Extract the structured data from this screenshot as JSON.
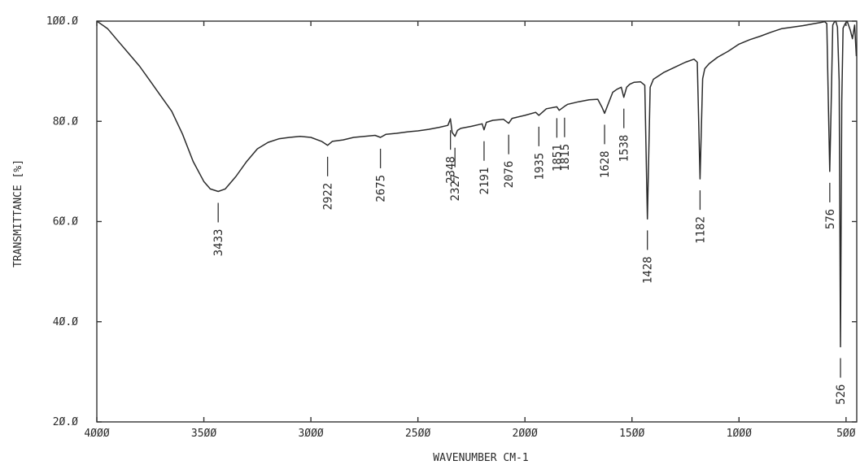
{
  "chart_data": {
    "type": "line",
    "title": "",
    "xlabel": "WAVENUMBER CM-1",
    "ylabel": "TRANSMITTANCE [%]",
    "xlim": [
      4000,
      450
    ],
    "ylim": [
      20,
      100
    ],
    "x_reversed": true,
    "grid": false,
    "x_ticks": [
      {
        "value": 4000,
        "label": "4ØØØ"
      },
      {
        "value": 3500,
        "label": "35ØØ"
      },
      {
        "value": 3000,
        "label": "3ØØØ"
      },
      {
        "value": 2500,
        "label": "25ØØ"
      },
      {
        "value": 2000,
        "label": "2ØØØ"
      },
      {
        "value": 1500,
        "label": "15ØØ"
      },
      {
        "value": 1000,
        "label": "1ØØØ"
      },
      {
        "value": 500,
        "label": "5ØØ"
      }
    ],
    "y_ticks": [
      {
        "value": 100,
        "label": "1ØØ.Ø"
      },
      {
        "value": 80,
        "label": "8Ø.Ø"
      },
      {
        "value": 60,
        "label": "6Ø.Ø"
      },
      {
        "value": 40,
        "label": "4Ø.Ø"
      },
      {
        "value": 20,
        "label": "2Ø.Ø"
      }
    ],
    "series": [
      {
        "x": [
          4000,
          3950,
          3900,
          3850,
          3800,
          3750,
          3700,
          3650,
          3600,
          3550,
          3500,
          3470,
          3433,
          3400,
          3350,
          3300,
          3250,
          3200,
          3150,
          3100,
          3050,
          3000,
          2950,
          2922,
          2900,
          2850,
          2800,
          2750,
          2700,
          2675,
          2650,
          2600,
          2550,
          2500,
          2450,
          2400,
          2360,
          2348,
          2340,
          2327,
          2315,
          2300,
          2250,
          2200,
          2191,
          2180,
          2150,
          2100,
          2076,
          2060,
          2000,
          1950,
          1935,
          1900,
          1851,
          1840,
          1815,
          1800,
          1750,
          1700,
          1660,
          1640,
          1628,
          1610,
          1590,
          1570,
          1550,
          1538,
          1525,
          1510,
          1490,
          1460,
          1440,
          1428,
          1415,
          1400,
          1350,
          1300,
          1250,
          1210,
          1195,
          1182,
          1170,
          1160,
          1140,
          1100,
          1050,
          1000,
          950,
          900,
          850,
          800,
          750,
          700,
          650,
          620,
          600,
          590,
          582,
          576,
          570,
          562,
          555,
          548,
          540,
          532,
          526,
          520,
          514,
          505,
          495,
          480,
          470,
          460,
          452
        ],
        "y": [
          100,
          98.5,
          96,
          93.5,
          91,
          88,
          85,
          82,
          77.5,
          72,
          68,
          66.5,
          66,
          66.5,
          69,
          72,
          74.5,
          75.8,
          76.5,
          76.8,
          77,
          76.8,
          76,
          75.2,
          76,
          76.3,
          76.8,
          77,
          77.2,
          76.8,
          77.4,
          77.6,
          77.9,
          78.1,
          78.4,
          78.8,
          79.2,
          80.5,
          77.8,
          77,
          78.2,
          78.6,
          79,
          79.5,
          78.3,
          79.8,
          80.2,
          80.4,
          79.6,
          80.6,
          81.2,
          81.8,
          81.2,
          82.5,
          82.9,
          82.2,
          83,
          83.4,
          83.9,
          84.3,
          84.4,
          82.8,
          81.6,
          83.6,
          85.8,
          86.4,
          86.8,
          84.8,
          86.8,
          87.4,
          87.8,
          87.9,
          87.2,
          60.5,
          86.8,
          88.4,
          89.8,
          90.8,
          91.8,
          92.4,
          91.8,
          68.5,
          88.5,
          90.5,
          91.5,
          92.8,
          94,
          95.4,
          96.3,
          97,
          97.8,
          98.5,
          98.8,
          99.1,
          99.5,
          99.7,
          99.9,
          99.5,
          82,
          70,
          82,
          99.2,
          99.8,
          100,
          98.8,
          88,
          35,
          84,
          98.6,
          99.4,
          100,
          98.2,
          96.5,
          99.2,
          93
        ]
      }
    ],
    "peaks": [
      {
        "value": 3433,
        "label": "3433"
      },
      {
        "value": 2922,
        "label": "2922"
      },
      {
        "value": 2675,
        "label": "2675"
      },
      {
        "value": 2348,
        "label": "2348"
      },
      {
        "value": 2327,
        "label": "2327"
      },
      {
        "value": 2191,
        "label": "2191"
      },
      {
        "value": 2076,
        "label": "2076"
      },
      {
        "value": 1935,
        "label": "1935"
      },
      {
        "value": 1851,
        "label": "1851"
      },
      {
        "value": 1815,
        "label": "1815"
      },
      {
        "value": 1628,
        "label": "1628"
      },
      {
        "value": 1538,
        "label": "1538"
      },
      {
        "value": 1428,
        "label": "1428"
      },
      {
        "value": 1182,
        "label": "1182"
      },
      {
        "value": 576,
        "label": "576"
      },
      {
        "value": 526,
        "label": "526"
      }
    ]
  }
}
